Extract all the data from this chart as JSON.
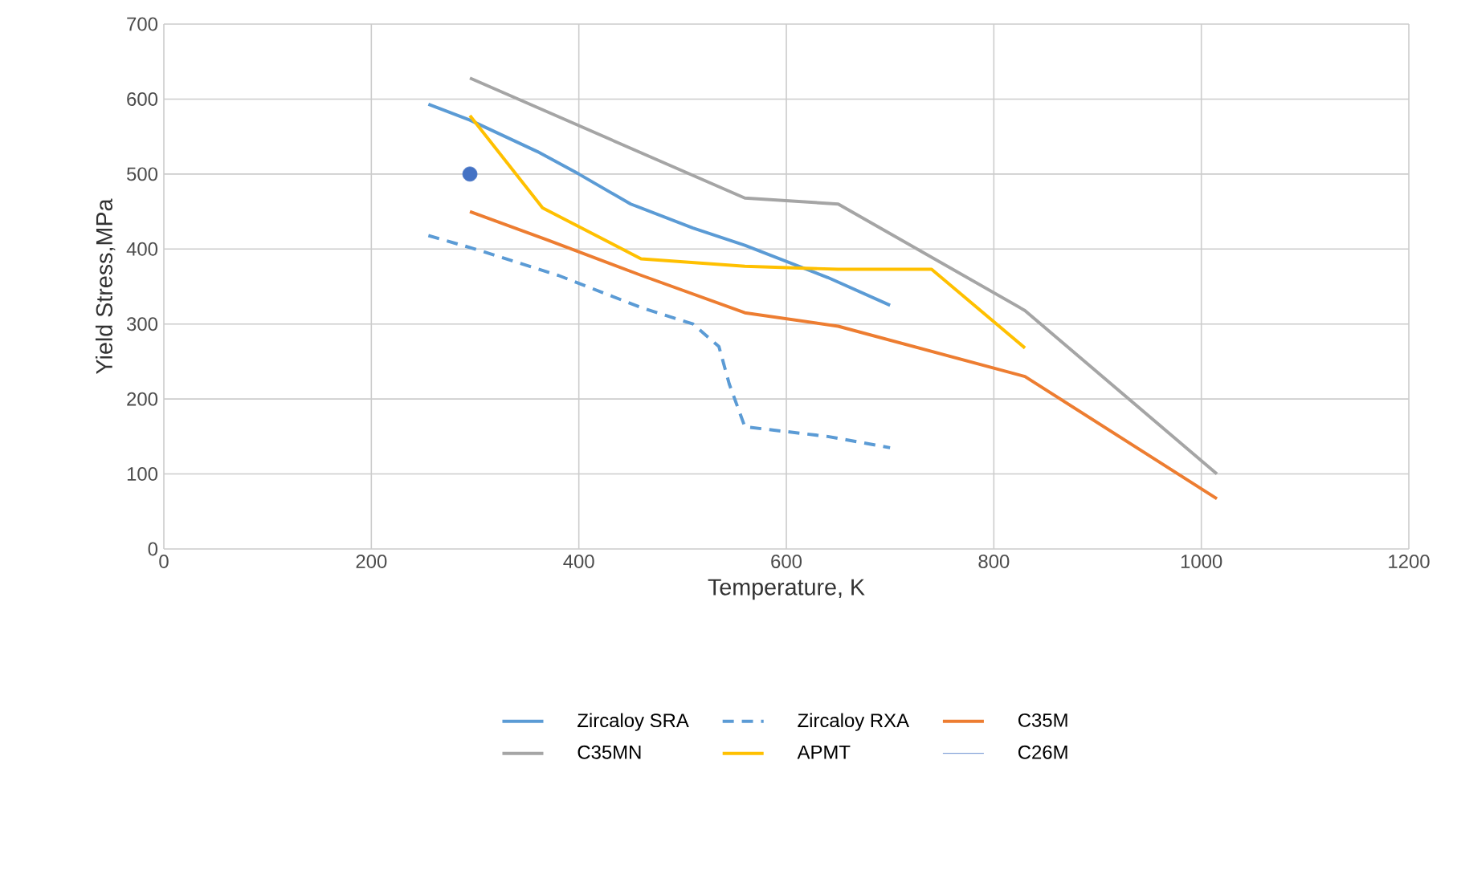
{
  "chart_data": {
    "type": "line",
    "xlabel": "Temperature, K",
    "ylabel": "Yield Stress,MPa",
    "xlim": [
      0,
      1200
    ],
    "xticks": [
      0,
      200,
      400,
      600,
      800,
      1000,
      1200
    ],
    "ylim": [
      0,
      700
    ],
    "yticks": [
      0,
      100,
      200,
      300,
      400,
      500,
      600,
      700
    ],
    "grid": true,
    "legend": "bottom",
    "marker": "none",
    "series": [
      {
        "name": "Zircaloy SRA",
        "color": "#5b9bd5",
        "line_style": "solid",
        "x": [
          255,
          295,
          360,
          400,
          450,
          510,
          560,
          640,
          700
        ],
        "values": [
          593,
          572,
          530,
          500,
          460,
          428,
          405,
          362,
          325
        ]
      },
      {
        "name": "Zircaloy RXA",
        "color": "#5b9bd5",
        "line_style": "dashed",
        "x": [
          255,
          300,
          380,
          460,
          510,
          535,
          545,
          560,
          640,
          700
        ],
        "values": [
          418,
          400,
          365,
          322,
          300,
          270,
          220,
          163,
          150,
          135
        ]
      },
      {
        "name": "C35M",
        "color": "#ed7d31",
        "line_style": "solid",
        "x": [
          295,
          370,
          460,
          560,
          650,
          830,
          1015
        ],
        "values": [
          450,
          412,
          365,
          315,
          297,
          230,
          67
        ]
      },
      {
        "name": "C35MN",
        "color": "#a5a5a5",
        "line_style": "solid",
        "x": [
          295,
          560,
          650,
          830,
          1015
        ],
        "values": [
          628,
          468,
          460,
          318,
          100
        ]
      },
      {
        "name": "APMT",
        "color": "#ffc000",
        "line_style": "solid",
        "x": [
          295,
          365,
          460,
          560,
          650,
          740,
          830
        ],
        "values": [
          578,
          455,
          387,
          377,
          373,
          373,
          268
        ]
      },
      {
        "name": "C26M",
        "color": "#4472c4",
        "type": "scatter",
        "marker": "circle",
        "x": [
          295
        ],
        "values": [
          500
        ]
      }
    ]
  }
}
